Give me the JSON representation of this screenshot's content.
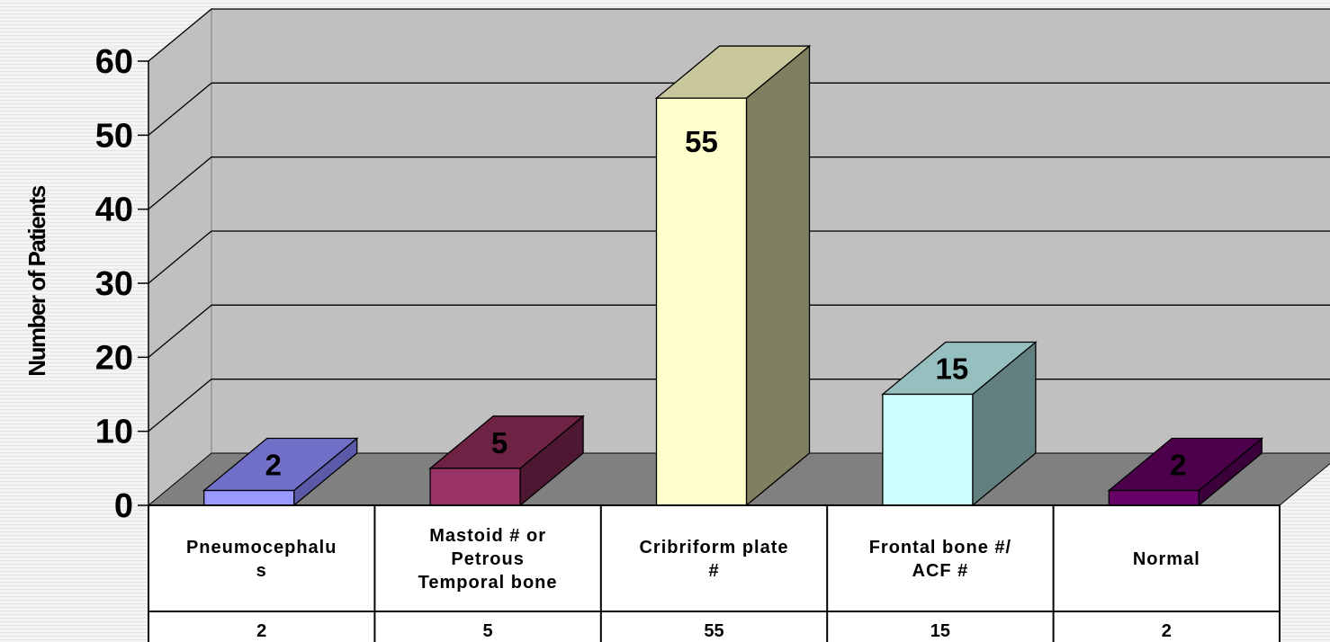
{
  "chart_data": {
    "type": "bar",
    "three_d": true,
    "title": "",
    "xlabel": "",
    "ylabel": "Number of Patients",
    "ylim": [
      0,
      60
    ],
    "yticks": [
      "0",
      "10",
      "20",
      "30",
      "40",
      "50",
      "60"
    ],
    "grid": true,
    "categories": [
      [
        "Pneumocephalu",
        "s"
      ],
      [
        "Mastoid # or",
        "Petrous",
        "Temporal bone"
      ],
      [
        "Cribriform plate",
        "#"
      ],
      [
        "Frontal bone #/",
        "ACF #"
      ],
      [
        "Normal"
      ]
    ],
    "values": [
      2,
      5,
      55,
      15,
      2
    ],
    "data_labels": [
      "2",
      "5",
      "55",
      "15",
      "2"
    ],
    "table_values": [
      "2",
      "5",
      "55",
      "15",
      "2"
    ],
    "colors": [
      {
        "front": "#9999ff",
        "top": "#7070c8",
        "side": "#5a5aa8"
      },
      {
        "front": "#993366",
        "top": "#6e2244",
        "side": "#4e1832"
      },
      {
        "front": "#ffffcc",
        "top": "#c8c89c",
        "side": "#808060"
      },
      {
        "front": "#ccffff",
        "top": "#96c0c0",
        "side": "#628080"
      },
      {
        "front": "#660066",
        "top": "#4c004c",
        "side": "#3a003a"
      }
    ],
    "wall_color": "#c0c0c0",
    "floor_color": "#808080"
  }
}
